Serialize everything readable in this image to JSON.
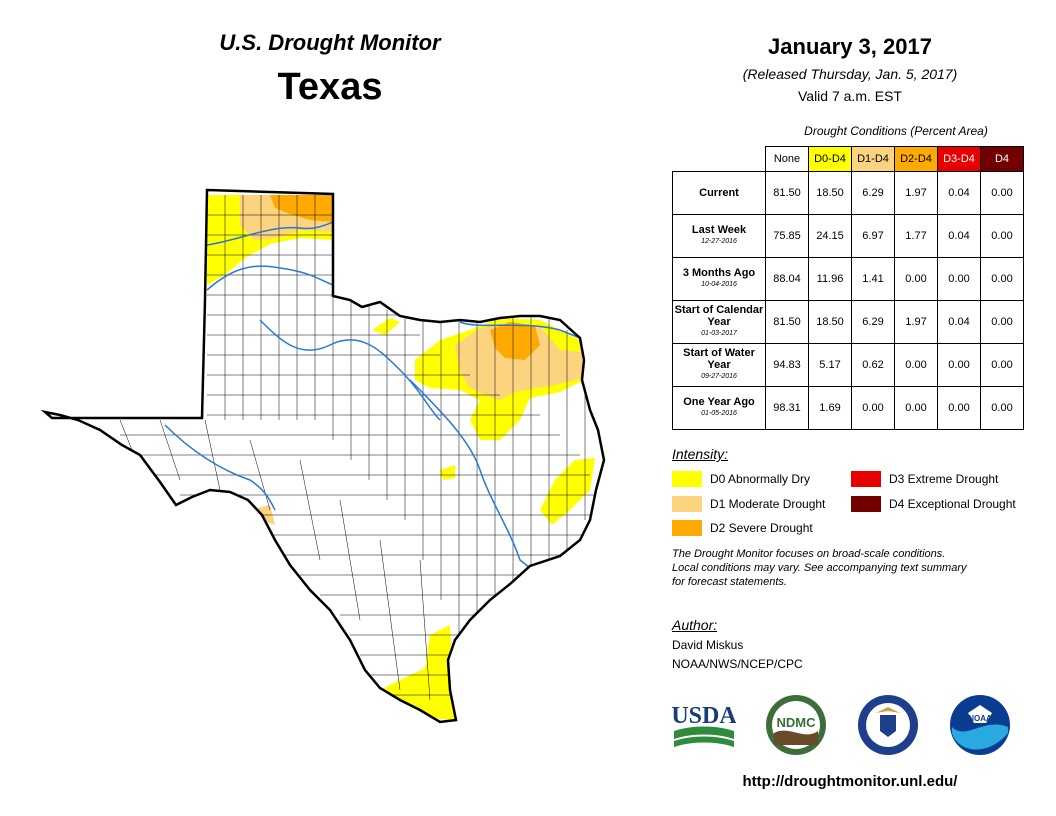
{
  "header": {
    "monitor_title": "U.S. Drought Monitor",
    "state": "Texas",
    "date": "January 3, 2017",
    "released": "(Released Thursday, Jan. 5, 2017)",
    "valid": "Valid 7 a.m. EST"
  },
  "table": {
    "caption": "Drought Conditions (Percent Area)",
    "columns": [
      {
        "label": "None",
        "color": "#ffffff",
        "text_color": "#000000"
      },
      {
        "label": "D0-D4",
        "color": "#ffff00",
        "text_color": "#000000"
      },
      {
        "label": "D1-D4",
        "color": "#fcd37f",
        "text_color": "#000000"
      },
      {
        "label": "D2-D4",
        "color": "#ffaa00",
        "text_color": "#000000"
      },
      {
        "label": "D3-D4",
        "color": "#e60000",
        "text_color": "#ffffff"
      },
      {
        "label": "D4",
        "color": "#730000",
        "text_color": "#ffffff"
      }
    ],
    "rows": [
      {
        "label": "Current",
        "sub": "",
        "values": [
          "81.50",
          "18.50",
          "6.29",
          "1.97",
          "0.04",
          "0.00"
        ]
      },
      {
        "label": "Last Week",
        "sub": "12-27-2016",
        "values": [
          "75.85",
          "24.15",
          "6.97",
          "1.77",
          "0.04",
          "0.00"
        ]
      },
      {
        "label": "3 Months Ago",
        "sub": "10-04-2016",
        "values": [
          "88.04",
          "11.96",
          "1.41",
          "0.00",
          "0.00",
          "0.00"
        ]
      },
      {
        "label": "Start of Calendar Year",
        "sub": "01-03-2017",
        "values": [
          "81.50",
          "18.50",
          "6.29",
          "1.97",
          "0.04",
          "0.00"
        ]
      },
      {
        "label": "Start of Water Year",
        "sub": "09-27-2016",
        "values": [
          "94.83",
          "5.17",
          "0.62",
          "0.00",
          "0.00",
          "0.00"
        ]
      },
      {
        "label": "One Year Ago",
        "sub": "01-05-2016",
        "values": [
          "98.31",
          "1.69",
          "0.00",
          "0.00",
          "0.00",
          "0.00"
        ]
      }
    ]
  },
  "legend": {
    "title": "Intensity:",
    "items": [
      {
        "label": "D0 Abnormally Dry",
        "color": "#ffff00"
      },
      {
        "label": "D1 Moderate Drought",
        "color": "#fcd37f"
      },
      {
        "label": "D2 Severe Drought",
        "color": "#ffaa00"
      },
      {
        "label": "D3 Extreme Drought",
        "color": "#e60000"
      },
      {
        "label": "D4 Exceptional Drought",
        "color": "#730000"
      }
    ]
  },
  "disclaimer": {
    "line1": "The Drought Monitor focuses on broad-scale conditions.",
    "line2": "Local conditions may vary. See accompanying text summary",
    "line3": "for forecast statements."
  },
  "author": {
    "title": "Author:",
    "name": "David Miskus",
    "org": "NOAA/NWS/NCEP/CPC"
  },
  "logos": {
    "usda": "USDA",
    "ndmc": "NDMC",
    "noaa": "NOAA"
  },
  "url": "http://droughtmonitor.unl.edu/"
}
